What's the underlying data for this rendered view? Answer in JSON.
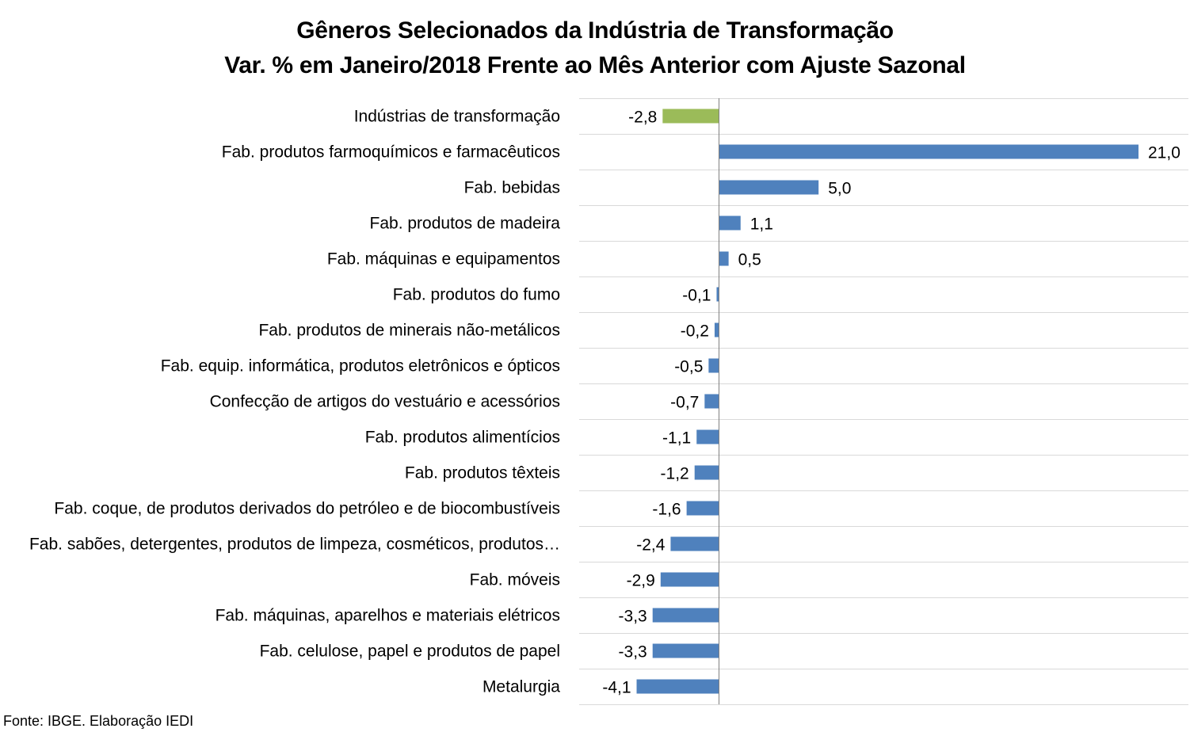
{
  "title": {
    "line1": "Gêneros Selecionados da Indústria de Transformação",
    "line2": "Var. % em Janeiro/2018 Frente ao Mês Anterior com Ajuste Sazonal"
  },
  "source": "Fonte: IBGE. Elaboração IEDI",
  "colors": {
    "bar": "#4F81BD",
    "highlight": "#9BBB59",
    "grid": "#D9D9D9",
    "axis": "#808080",
    "text": "#000000"
  },
  "chart_data": {
    "type": "bar",
    "orientation": "horizontal",
    "title": "Gêneros Selecionados da Indústria de Transformação — Var. % em Janeiro/2018 Frente ao Mês Anterior com Ajuste Sazonal",
    "xlabel": "",
    "ylabel": "",
    "xlim": [
      -4.1,
      21.0
    ],
    "grid": "horizontal lines between categories",
    "legend": "none",
    "highlight_index": 0,
    "categories": [
      "Indústrias de transformação",
      "Fab. produtos farmoquímicos e farmacêuticos",
      "Fab. bebidas",
      "Fab. produtos de madeira",
      "Fab. máquinas e equipamentos",
      "Fab. produtos do fumo",
      "Fab. produtos de minerais não-metálicos",
      "Fab. equip. informática, produtos eletrônicos e ópticos",
      "Confecção de artigos do vestuário e acessórios",
      "Fab. produtos alimentícios",
      "Fab. produtos têxteis",
      "Fab. coque, de produtos derivados do petróleo e de biocombustíveis",
      "Fab. sabões, detergentes, produtos de limpeza, cosméticos, produtos…",
      "Fab. móveis",
      "Fab. máquinas, aparelhos e materiais elétricos",
      "Fab. celulose, papel e produtos de papel",
      "Metalurgia"
    ],
    "values": [
      -2.8,
      21.0,
      5.0,
      1.1,
      0.5,
      -0.1,
      -0.2,
      -0.5,
      -0.7,
      -1.1,
      -1.2,
      -1.6,
      -2.4,
      -2.9,
      -3.3,
      -3.3,
      -4.1
    ],
    "value_labels": [
      "-2,8",
      "21,0",
      "5,0",
      "1,1",
      "0,5",
      "-0,1",
      "-0,2",
      "-0,5",
      "-0,7",
      "-1,1",
      "-1,2",
      "-1,6",
      "-2,4",
      "-2,9",
      "-3,3",
      "-3,3",
      "-4,1"
    ]
  }
}
